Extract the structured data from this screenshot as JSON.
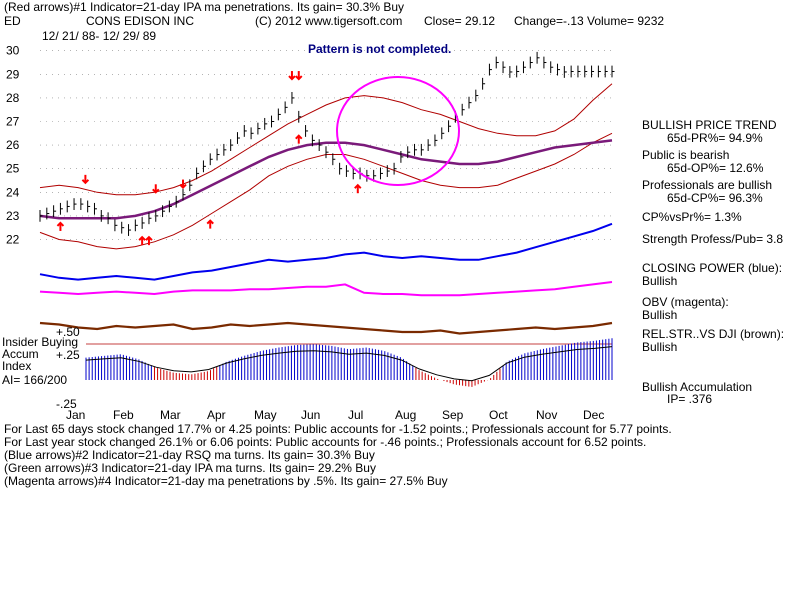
{
  "header": {
    "line1": "(Red arrows)#1 Indicator=21-day IPA ma penetrations. Its gain= 30.3% Buy",
    "symbol": "ED",
    "name": "CONS EDISON INC",
    "copyright": "(C) 2012 www.tigersoft.com",
    "close": "Close=  29.12",
    "change": "Change=-.13",
    "volume": "Volume=  9232",
    "date_range": "12/ 21/ 88- 12/ 29/ 89"
  },
  "pattern_note": "Pattern is not completed.",
  "right_panel": {
    "bullish_price_trend": "BULLISH PRICE TREND",
    "pr_65d": "65d-PR%= 94.9%",
    "public_bearish": "Public is bearish",
    "op_65d": "65d-OP%= 12.6%",
    "professionals_bullish": "Professionals are bullish",
    "cp_65d": "65d-CP%= 96.3%",
    "cp_vs_pr": "CP%vsPr%=  1.3%",
    "strength": "Strength Profess/Pub= 3.8",
    "closing_power": "CLOSING POWER (blue):",
    "closing_power_val": "Bullish",
    "obv": "OBV (magenta):",
    "obv_val": "Bullish",
    "relstr": "REL.STR..VS DJI (brown):",
    "relstr_val": "Bullish",
    "bullish_accum": "Bullish Accumulation",
    "ip": "IP=  .376"
  },
  "accum_panel": {
    "insider_buying": "Insider Buying",
    "accum_index": "Accum",
    "index": "Index",
    "ai": "AI= 166/200",
    "plus50": "+.50",
    "plus25": "+.25",
    "minus25": "-.25"
  },
  "footer": {
    "line1": "For Last 65 days stock changed  17.7% or  4.25 points:  Public accounts for -1.52 points.;  Professionals account for  5.77 points.",
    "line2": "For Last year stock changed  26.1% or  6.06 points:  Public accounts for -.46 points.;  Professionals account for  6.52 points.",
    "line3": "(Blue arrows)#2 Indicator=21-day RSQ ma turns. Its gain= 30.3% Buy",
    "line4": "(Green arrows)#3 Indicator=21-day IPA ma turns. Its gain= 29.2% Buy",
    "line5": "(Magenta arrows)#4 Indicator=21-day ma penetrations by .5%. Its gain= 27.5% Buy"
  },
  "colors": {
    "price": "#000000",
    "bands": "#b00000",
    "ma": "#7a1a7a",
    "closing_power": "#0000ee",
    "obv": "#ff00ff",
    "relstr": "#7a2a00",
    "accum_pos": "#0000cc",
    "accum_neg": "#cc0000",
    "circle": "#ff00ff",
    "text_blue": "#000080",
    "arrow": "#ff0000"
  },
  "chart_data": {
    "type": "line",
    "title": "CONS EDISON INC",
    "months": [
      "Jan",
      "Feb",
      "Mar",
      "Apr",
      "May",
      "Jun",
      "Jul",
      "Aug",
      "Sep",
      "Oct",
      "Nov",
      "Dec"
    ],
    "y_ticks": [
      22,
      23,
      24,
      25,
      26,
      27,
      28,
      29,
      30
    ],
    "ylim": [
      21.3,
      30.2
    ],
    "price": {
      "x": [
        0,
        3,
        6,
        9,
        12,
        15,
        18,
        21,
        24,
        27,
        30,
        33,
        36,
        39,
        42,
        45,
        48,
        51,
        54,
        57,
        60,
        63,
        66,
        69,
        72,
        75,
        78,
        81,
        84,
        87,
        90,
        93,
        96,
        99,
        102,
        105,
        108,
        111,
        114,
        117,
        120,
        123,
        126,
        129,
        132,
        135,
        138,
        141,
        144,
        147,
        150,
        153,
        156,
        159,
        162,
        165,
        168,
        171,
        174,
        177,
        180,
        183,
        186,
        189,
        192,
        195,
        198,
        201,
        204,
        207,
        210,
        213,
        216,
        219,
        222,
        225,
        228,
        231,
        234,
        237,
        240,
        243,
        246,
        249,
        252
      ],
      "close": [
        23.0,
        23.1,
        23.2,
        23.3,
        23.4,
        23.5,
        23.5,
        23.4,
        23.3,
        23.0,
        22.9,
        22.6,
        22.5,
        22.4,
        22.6,
        22.7,
        22.9,
        23.0,
        23.2,
        23.4,
        23.6,
        23.9,
        24.3,
        24.8,
        25.1,
        25.4,
        25.6,
        25.8,
        26.0,
        26.3,
        26.6,
        26.5,
        26.7,
        26.9,
        27.0,
        27.3,
        27.6,
        28.0,
        27.2,
        26.6,
        26.2,
        26.0,
        25.7,
        25.4,
        25.0,
        24.9,
        24.8,
        24.8,
        24.7,
        24.7,
        24.8,
        24.9,
        25.0,
        25.5,
        25.7,
        25.8,
        25.8,
        26.0,
        26.2,
        26.5,
        26.8,
        27.2,
        27.5,
        27.8,
        28.1,
        28.6,
        29.2,
        29.5,
        29.3,
        29.1,
        29.12,
        29.3,
        29.5,
        29.7,
        29.5,
        29.3,
        29.2,
        29.1,
        29.12,
        29.12,
        29.12,
        29.12,
        29.12,
        29.12,
        29.12
      ]
    },
    "upper_band": [
      24.2,
      24.3,
      24.2,
      24.0,
      23.9,
      23.9,
      24.0,
      24.2,
      24.5,
      24.9,
      25.4,
      25.9,
      26.4,
      26.9,
      27.3,
      27.7,
      28.0,
      28.1,
      28.0,
      27.8,
      27.5,
      27.3,
      27.0,
      26.7,
      26.5,
      26.4,
      26.4,
      26.6,
      27.1,
      27.9,
      28.6
    ],
    "lower_band": [
      22.3,
      22.0,
      21.9,
      21.7,
      21.6,
      21.7,
      21.9,
      22.2,
      22.6,
      23.1,
      23.6,
      24.1,
      24.7,
      25.1,
      25.4,
      25.6,
      25.6,
      25.4,
      25.1,
      24.8,
      24.5,
      24.3,
      24.2,
      24.2,
      24.3,
      24.6,
      24.9,
      25.2,
      25.6,
      26.1,
      26.5
    ],
    "ma21": [
      23.0,
      22.9,
      22.9,
      22.9,
      22.9,
      23.0,
      23.2,
      23.5,
      23.9,
      24.3,
      24.7,
      25.1,
      25.5,
      25.8,
      26.0,
      26.1,
      26.1,
      26.0,
      25.8,
      25.6,
      25.4,
      25.3,
      25.2,
      25.2,
      25.3,
      25.5,
      25.7,
      25.9,
      26.0,
      26.1,
      26.2
    ],
    "closing_power": [
      20.6,
      20.4,
      20.3,
      20.4,
      20.5,
      20.4,
      20.3,
      20.5,
      20.7,
      20.8,
      21.0,
      21.2,
      21.4,
      21.3,
      21.4,
      21.5,
      21.7,
      21.8,
      21.6,
      21.5,
      21.6,
      21.5,
      21.4,
      21.4,
      21.6,
      21.8,
      22.1,
      22.4,
      22.7,
      23.0,
      23.4
    ],
    "obv": [
      20.2,
      20.1,
      20.0,
      20.1,
      20.2,
      20.1,
      20.0,
      20.2,
      20.3,
      20.3,
      20.3,
      20.4,
      20.4,
      20.5,
      20.6,
      20.6,
      20.8,
      20.1,
      20.0,
      20.0,
      19.9,
      19.9,
      19.9,
      20.0,
      20.1,
      20.2,
      20.3,
      20.4,
      20.6,
      20.8,
      21.0
    ],
    "relstr": [
      1.0,
      0.9,
      0.7,
      0.6,
      0.8,
      0.7,
      0.8,
      0.9,
      0.6,
      0.7,
      0.9,
      0.8,
      0.9,
      1.0,
      0.9,
      0.8,
      0.7,
      0.6,
      0.5,
      0.4,
      0.4,
      0.5,
      0.3,
      0.4,
      0.5,
      0.6,
      0.7,
      0.6,
      0.7,
      0.8,
      1.0
    ],
    "accum": [
      0.1,
      0.12,
      0.14,
      0.08,
      -0.02,
      -0.08,
      -0.1,
      -0.06,
      0.05,
      0.12,
      0.18,
      0.22,
      0.25,
      0.26,
      0.24,
      0.2,
      0.22,
      0.18,
      0.1,
      -0.05,
      -0.15,
      -0.22,
      -0.25,
      -0.16,
      0.05,
      0.15,
      0.2,
      0.24,
      0.28,
      0.3,
      0.33
    ],
    "annotations": {
      "pattern_note": "Pattern is not completed."
    }
  }
}
